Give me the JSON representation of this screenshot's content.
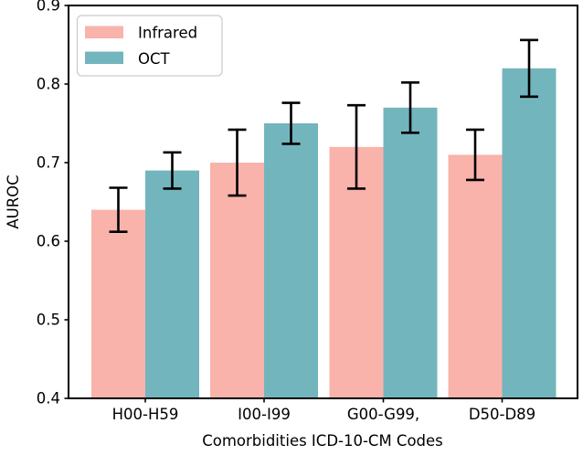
{
  "figure": {
    "background": "#ffffff"
  },
  "chart_data": {
    "type": "bar",
    "categories": [
      "H00-H59",
      "I00-I99",
      "G00-G99,",
      "D50-D89"
    ],
    "series": [
      {
        "name": "Infrared",
        "color": "#f9b3ab",
        "values": [
          0.64,
          0.7,
          0.72,
          0.71
        ],
        "errors": [
          0.028,
          0.042,
          0.053,
          0.032
        ]
      },
      {
        "name": "OCT",
        "color": "#73b5bd",
        "values": [
          0.69,
          0.75,
          0.77,
          0.82
        ],
        "errors": [
          0.023,
          0.026,
          0.032,
          0.036
        ]
      }
    ],
    "title": "",
    "xlabel": "Comorbidities ICD-10-CM Codes",
    "ylabel": "AUROC",
    "ylim": [
      0.4,
      0.9
    ],
    "yticks": [
      0.4,
      0.5,
      0.6,
      0.7,
      0.8,
      0.9
    ],
    "ytick_labels": [
      "0.4",
      "0.5",
      "0.6",
      "0.7",
      "0.8",
      "0.9"
    ],
    "grid": false,
    "legend": {
      "position": "upper left",
      "items": [
        "Infrared",
        "OCT"
      ]
    },
    "error_bar_color": "#000000",
    "axis_color": "#000000",
    "legend_border_color": "#cccccc"
  }
}
